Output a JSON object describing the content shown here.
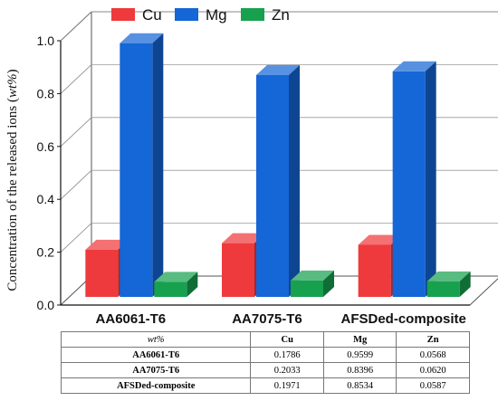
{
  "chart_data": {
    "type": "bar",
    "ylabel_prefix": "Concentration of the released ions (",
    "ylabel_unit": "wt%",
    "ylabel_suffix": ")",
    "ylim": [
      0,
      1.0
    ],
    "yticks": [
      "0.0",
      "0.2",
      "0.4",
      "0.6",
      "0.8",
      "1.0"
    ],
    "ytick_values": [
      0,
      0.2,
      0.4,
      0.6,
      0.8,
      1.0
    ],
    "categories": [
      "AA6061-T6",
      "AA7075-T6",
      "AFSDed-composite"
    ],
    "series": [
      {
        "name": "Cu",
        "color": "#ee3a3c",
        "values": [
          0.1786,
          0.2033,
          0.1971
        ]
      },
      {
        "name": "Mg",
        "color": "#1566d6",
        "values": [
          0.9599,
          0.8396,
          0.8534
        ]
      },
      {
        "name": "Zn",
        "color": "#17a14f",
        "values": [
          0.0568,
          0.062,
          0.0587
        ]
      }
    ],
    "legend_position": "top",
    "chart_style": "3d-bars"
  },
  "table": {
    "corner": "wt%",
    "columns": [
      "Cu",
      "Mg",
      "Zn"
    ],
    "rows": [
      {
        "label": "AA6061-T6",
        "cells": [
          "0.1786",
          "0.9599",
          "0.0568"
        ]
      },
      {
        "label": "AA7075-T6",
        "cells": [
          "0.2033",
          "0.8396",
          "0.0620"
        ]
      },
      {
        "label": "AFSDed-composite",
        "cells": [
          "0.1971",
          "0.8534",
          "0.0587"
        ]
      }
    ]
  }
}
